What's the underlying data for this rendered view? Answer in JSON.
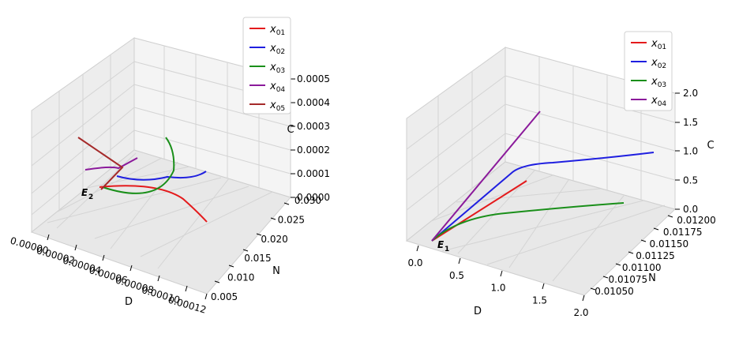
{
  "chart_data": [
    {
      "type": "line",
      "projection": "3d",
      "title": "",
      "xlabel": "D",
      "ylabel": "N",
      "zlabel": "C",
      "xlim": [
        0,
        0.00012
      ],
      "ylim": [
        0.005,
        0.03
      ],
      "zlim": [
        0,
        0.0005
      ],
      "x_ticks": [
        "0.00000",
        "0.00002",
        "0.00004",
        "0.00006",
        "0.00008",
        "0.00010",
        "0.00012"
      ],
      "y_ticks": [
        "0.005",
        "0.010",
        "0.015",
        "0.020",
        "0.025",
        "0.030"
      ],
      "z_ticks": [
        "0.0000",
        "0.0001",
        "0.0002",
        "0.0003",
        "0.0004",
        "0.0005"
      ],
      "grid": true,
      "legend": "upper-right",
      "equilibrium_label": {
        "letter": "E",
        "sub": "2"
      },
      "series": [
        {
          "name": "x",
          "sub": "01",
          "color": "#e41a1c"
        },
        {
          "name": "x",
          "sub": "02",
          "color": "#1f1fe0"
        },
        {
          "name": "x",
          "sub": "03",
          "color": "#1a8f1a"
        },
        {
          "name": "x",
          "sub": "04",
          "color": "#8b1a9b"
        },
        {
          "name": "x",
          "sub": "05",
          "color": "#a52a2a"
        }
      ]
    },
    {
      "type": "line",
      "projection": "3d",
      "title": "",
      "xlabel": "D",
      "ylabel": "N",
      "zlabel": "C",
      "xlim": [
        0,
        2.0
      ],
      "ylim": [
        0.0105,
        0.012
      ],
      "zlim": [
        0,
        2.0
      ],
      "x_ticks": [
        "0.0",
        "0.5",
        "1.0",
        "1.5",
        "2.0"
      ],
      "y_ticks": [
        "0.01050",
        "0.01075",
        "0.01100",
        "0.01125",
        "0.01150",
        "0.01175",
        "0.01200"
      ],
      "z_ticks": [
        "0.0",
        "0.5",
        "1.0",
        "1.5",
        "2.0"
      ],
      "grid": true,
      "legend": "upper-right",
      "equilibrium_label": {
        "letter": "E",
        "sub": "1"
      },
      "series": [
        {
          "name": "x",
          "sub": "01",
          "color": "#e41a1c"
        },
        {
          "name": "x",
          "sub": "02",
          "color": "#1f1fe0"
        },
        {
          "name": "x",
          "sub": "03",
          "color": "#1a8f1a"
        },
        {
          "name": "x",
          "sub": "04",
          "color": "#8b1a9b"
        }
      ]
    }
  ]
}
